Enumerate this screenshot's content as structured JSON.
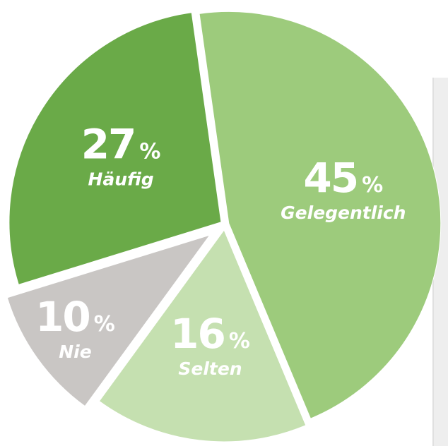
{
  "chart_data": {
    "type": "pie",
    "categories": [
      "Gelegentlich",
      "Selten",
      "Nie",
      "Häufig"
    ],
    "values": [
      45,
      16,
      10,
      27
    ],
    "unit": "%",
    "colors": [
      "#9dcb7c",
      "#c5e0b0",
      "#c9c6c4",
      "#6aaa48"
    ]
  }
}
